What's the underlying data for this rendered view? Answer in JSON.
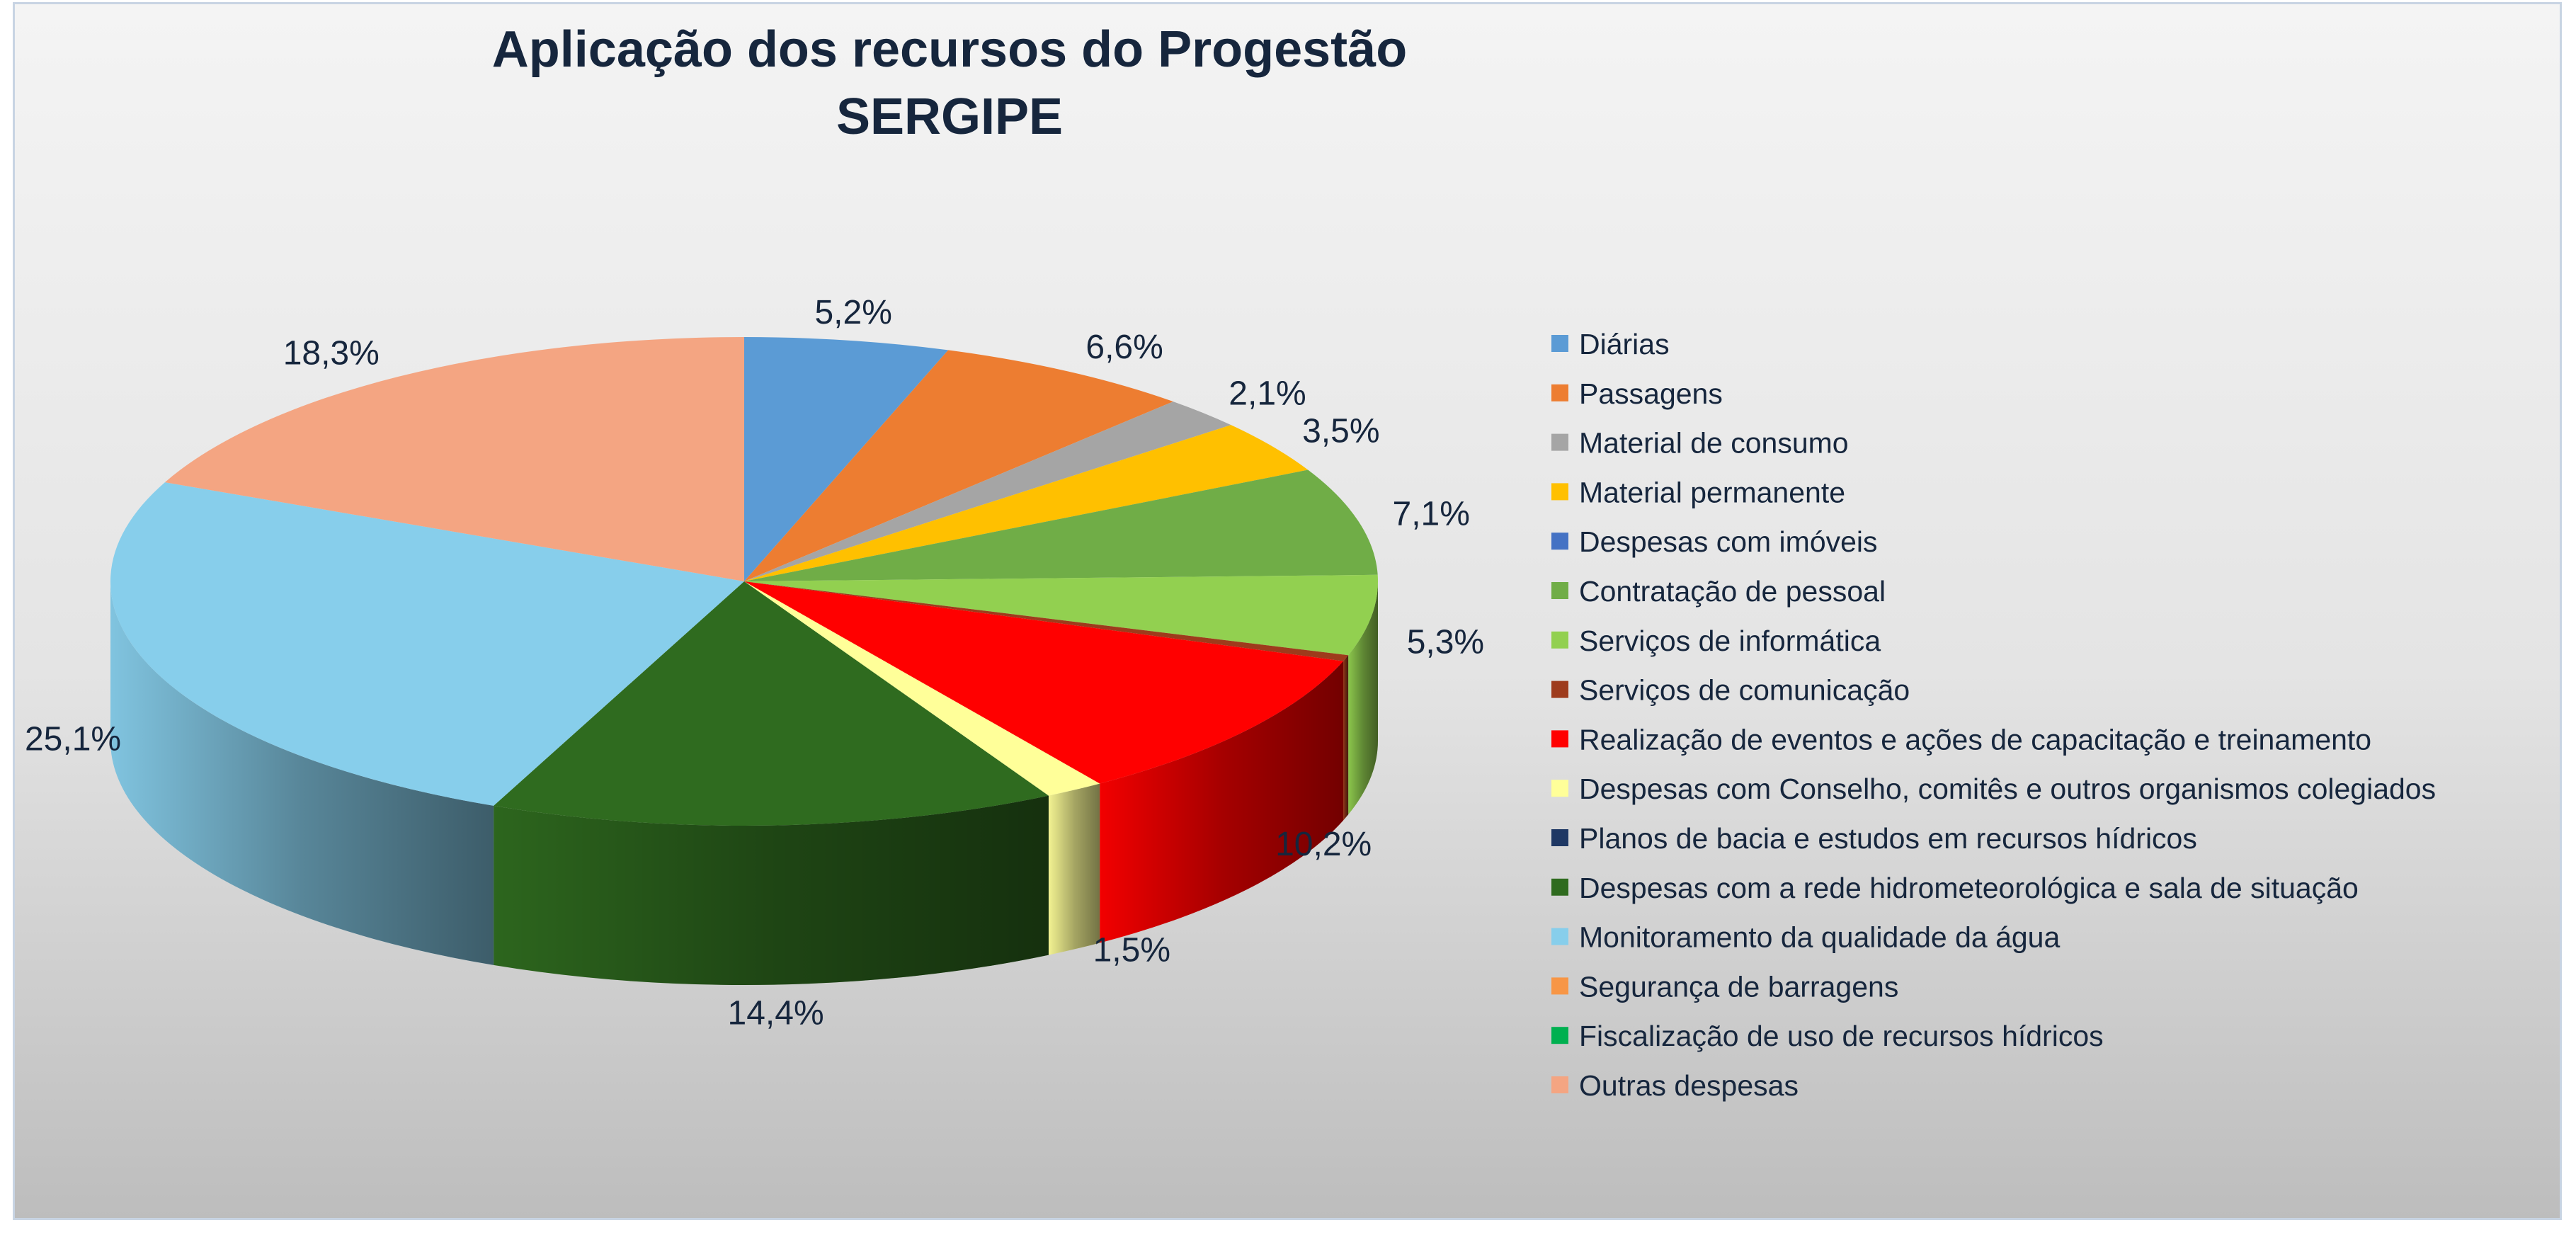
{
  "chart_data": {
    "type": "pie",
    "title": "Aplicação dos recursos do Progestão",
    "subtitle": "SERGIPE",
    "legend_position": "right",
    "three_d": true,
    "slices": [
      {
        "name": "Diárias",
        "value": 5.2,
        "label": "5,2%",
        "color": "#5b9bd5"
      },
      {
        "name": "Passagens",
        "value": 6.6,
        "label": "6,6%",
        "color": "#ed7d31"
      },
      {
        "name": "Material de consumo",
        "value": 2.1,
        "label": "2,1%",
        "color": "#a5a5a5"
      },
      {
        "name": "Material permanente",
        "value": 3.5,
        "label": "3,5%",
        "color": "#ffc000"
      },
      {
        "name": "Despesas com imóveis",
        "value": 0,
        "label": "",
        "color": "#4472c4"
      },
      {
        "name": "Contratação de pessoal",
        "value": 7.1,
        "label": "7,1%",
        "color": "#70ad47"
      },
      {
        "name": "Serviços de informática",
        "value": 5.3,
        "label": "5,3%",
        "color": "#92d050"
      },
      {
        "name": "Serviços de comunicação",
        "value": 0.4,
        "label": "",
        "color": "#9e3b1c"
      },
      {
        "name": "Realização de eventos e ações de capacitação e treinamento",
        "value": 10.2,
        "label": "10,2%",
        "color": "#ff0000"
      },
      {
        "name": "Despesas com Conselho, comitês e outros organismos colegiados",
        "value": 1.5,
        "label": "1,5%",
        "color": "#ffff99"
      },
      {
        "name": "Planos de bacia e estudos em recursos hídricos",
        "value": 0,
        "label": "",
        "color": "#1f3864"
      },
      {
        "name": "Despesas com a rede hidrometeorológica e sala de situação",
        "value": 14.4,
        "label": "14,4%",
        "color": "#2f6b1f"
      },
      {
        "name": "Monitoramento da qualidade da água",
        "value": 25.1,
        "label": "25,1%",
        "color": "#87ceeb"
      },
      {
        "name": "Segurança de barragens",
        "value": 0,
        "label": "",
        "color": "#f79646"
      },
      {
        "name": "Fiscalização de uso de recursos hídricos",
        "value": 0,
        "label": "",
        "color": "#00b050"
      },
      {
        "name": "Outras despesas",
        "value": 18.3,
        "label": "18,3%",
        "color": "#f4a582"
      }
    ]
  }
}
